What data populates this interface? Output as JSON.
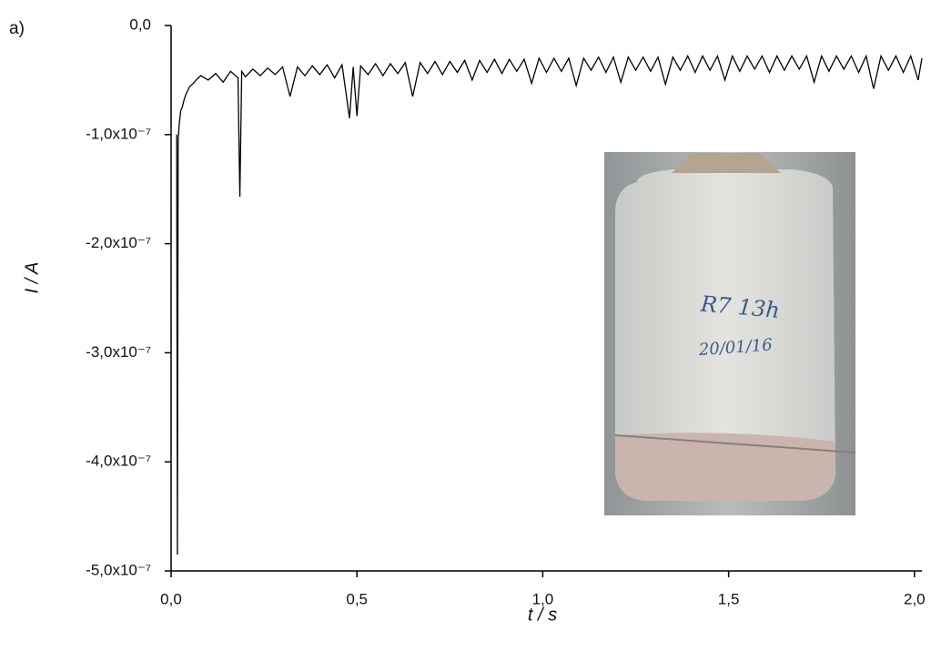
{
  "chart_data": {
    "type": "line",
    "panel_label": "a)",
    "x_label": "t / s",
    "y_label": "I / A",
    "xlim": [
      0,
      2.02
    ],
    "ylim": [
      -5e-07,
      0
    ],
    "xticks": [
      {
        "value": 0,
        "label": "0,0"
      },
      {
        "value": 0.5,
        "label": "0,5"
      },
      {
        "value": 1,
        "label": "1,0"
      },
      {
        "value": 1.5,
        "label": "1,5"
      },
      {
        "value": 2,
        "label": "2,0"
      }
    ],
    "yticks": [
      {
        "value": 0,
        "label": "0,0"
      },
      {
        "value": -1e-07,
        "label": "-1,0x10⁻⁷"
      },
      {
        "value": -2e-07,
        "label": "-2,0x10⁻⁷"
      },
      {
        "value": -3e-07,
        "label": "-3,0x10⁻⁷"
      },
      {
        "value": -4e-07,
        "label": "-4,0x10⁻⁷"
      },
      {
        "value": -5e-07,
        "label": "-5,0x10⁻⁷"
      }
    ],
    "annotations": [
      "R7 13h",
      "20/01/16"
    ],
    "series": [
      {
        "color": "#000000",
        "x": [
          0.015,
          0.017,
          0.019,
          0.022,
          0.026,
          0.03,
          0.035,
          0.04,
          0.05,
          0.06,
          0.07,
          0.08,
          0.1,
          0.12,
          0.14,
          0.16,
          0.18,
          0.185,
          0.19,
          0.2,
          0.22,
          0.24,
          0.26,
          0.28,
          0.3,
          0.32,
          0.34,
          0.36,
          0.38,
          0.4,
          0.42,
          0.44,
          0.46,
          0.48,
          0.49,
          0.5,
          0.51,
          0.53,
          0.55,
          0.57,
          0.59,
          0.61,
          0.63,
          0.65,
          0.67,
          0.69,
          0.71,
          0.73,
          0.75,
          0.77,
          0.79,
          0.81,
          0.83,
          0.85,
          0.87,
          0.89,
          0.91,
          0.93,
          0.95,
          0.97,
          0.99,
          1.01,
          1.03,
          1.05,
          1.07,
          1.09,
          1.11,
          1.13,
          1.15,
          1.17,
          1.19,
          1.21,
          1.23,
          1.25,
          1.27,
          1.29,
          1.31,
          1.33,
          1.35,
          1.37,
          1.39,
          1.41,
          1.43,
          1.45,
          1.47,
          1.49,
          1.51,
          1.53,
          1.55,
          1.57,
          1.59,
          1.61,
          1.63,
          1.65,
          1.67,
          1.69,
          1.71,
          1.73,
          1.75,
          1.77,
          1.79,
          1.81,
          1.83,
          1.85,
          1.87,
          1.89,
          1.91,
          1.93,
          1.95,
          1.97,
          1.99,
          2.01,
          2.02
        ],
        "values": [
          -1e-07,
          -4.85e-07,
          -1.05e-07,
          -9e-08,
          -7.8e-08,
          -7.5e-08,
          -6.8e-08,
          -6.3e-08,
          -5.6e-08,
          -5.3e-08,
          -4.9e-08,
          -4.6e-08,
          -5e-08,
          -4.4e-08,
          -5.2e-08,
          -4.2e-08,
          -4.8e-08,
          -1.57e-07,
          -4.2e-08,
          -4.7e-08,
          -4e-08,
          -4.6e-08,
          -3.9e-08,
          -4.5e-08,
          -3.8e-08,
          -6.5e-08,
          -3.8e-08,
          -4.6e-08,
          -3.7e-08,
          -4.5e-08,
          -3.6e-08,
          -4.8e-08,
          -3.6e-08,
          -8.5e-08,
          -3.8e-08,
          -8.3e-08,
          -3.7e-08,
          -4.5e-08,
          -3.5e-08,
          -4.6e-08,
          -3.5e-08,
          -4.4e-08,
          -3.4e-08,
          -6.5e-08,
          -3.4e-08,
          -4.4e-08,
          -3.3e-08,
          -4.5e-08,
          -3.3e-08,
          -4.3e-08,
          -3.2e-08,
          -5e-08,
          -3.2e-08,
          -4.3e-08,
          -3.1e-08,
          -4.4e-08,
          -3.1e-08,
          -4.2e-08,
          -3.1e-08,
          -5.3e-08,
          -3e-08,
          -4.3e-08,
          -3e-08,
          -4.2e-08,
          -3e-08,
          -5.5e-08,
          -3e-08,
          -4.1e-08,
          -2.9e-08,
          -4.3e-08,
          -2.9e-08,
          -5.2e-08,
          -2.9e-08,
          -4.1e-08,
          -2.9e-08,
          -4.2e-08,
          -2.9e-08,
          -5.4e-08,
          -2.9e-08,
          -4.1e-08,
          -2.8e-08,
          -4.3e-08,
          -2.8e-08,
          -4.1e-08,
          -2.8e-08,
          -5e-08,
          -2.8e-08,
          -4.2e-08,
          -2.8e-08,
          -4e-08,
          -2.8e-08,
          -4.3e-08,
          -2.8e-08,
          -4.1e-08,
          -2.8e-08,
          -4e-08,
          -2.8e-08,
          -5.2e-08,
          -2.8e-08,
          -4.2e-08,
          -2.8e-08,
          -4e-08,
          -2.8e-08,
          -4.3e-08,
          -2.8e-08,
          -5.8e-08,
          -2.8e-08,
          -4.1e-08,
          -2.8e-08,
          -4.3e-08,
          -2.8e-08,
          -5e-08,
          -3e-08
        ]
      }
    ]
  }
}
